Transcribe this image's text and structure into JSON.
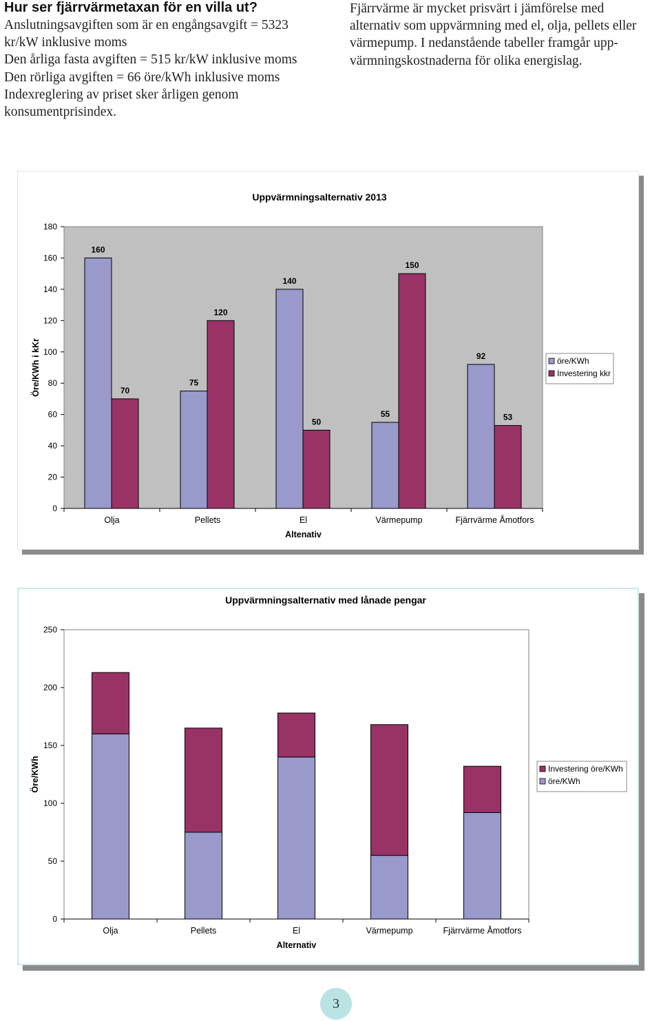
{
  "heading": "Hur ser fjärrvärmetaxan för en villa ut?",
  "left_lines": [
    "Anslutningsavgiften som är en engångsavgift = 5323",
    "kr/kW inklusive moms",
    "Den årliga fasta avgiften = 515 kr/kW inklusive moms",
    "Den rörliga avgiften = 66 öre/kWh inklusive moms",
    "Indexreglering av priset sker årligen genom",
    "konsumentprisindex."
  ],
  "right_lines": [
    "Fjärrvärme är mycket prisvärt i jämförelse med",
    "alternativ som uppvärmning med el, olja, pellets eller",
    "värmepump. I nedanstående tabeller framgår upp-",
    "värmningskostnaderna för olika energislag."
  ],
  "chart_data": [
    {
      "type": "bar",
      "title": "Uppvärmningsalternativ 2013",
      "xlabel": "Altenativ",
      "ylabel": "Öre/KWh i kKr",
      "categories": [
        "Olja",
        "Pellets",
        "El",
        "Värmepump",
        "Fjärrvärme Åmotfors"
      ],
      "series": [
        {
          "name": "öre/KWh",
          "values": [
            160,
            75,
            140,
            55,
            92
          ],
          "color": "#9999cc"
        },
        {
          "name": "Investering kkr",
          "values": [
            70,
            120,
            50,
            150,
            53
          ],
          "color": "#993366"
        }
      ],
      "ylim": [
        0,
        180
      ],
      "yticks": [
        0,
        20,
        40,
        60,
        80,
        100,
        120,
        140,
        160,
        180
      ],
      "data_labels": true,
      "grid": false,
      "legend": "right",
      "plot_background": "#c0c0c0"
    },
    {
      "type": "bar",
      "stacked": true,
      "title": "Uppvärmningsalternativ med lånade pengar",
      "xlabel": "Alternativ",
      "ylabel": "Öre/KWh",
      "categories": [
        "Olja",
        "Pellets",
        "El",
        "Värmepump",
        "Fjärrvärme Åmotfors"
      ],
      "series": [
        {
          "name": "öre/KWh",
          "values": [
            160,
            75,
            140,
            55,
            92
          ],
          "color": "#9999cc"
        },
        {
          "name": "Investering öre/KWh",
          "values": [
            53,
            90,
            38,
            113,
            40
          ],
          "color": "#993366"
        }
      ],
      "legend_order": [
        "Investering öre/KWh",
        "öre/KWh"
      ],
      "ylim": [
        0,
        250
      ],
      "yticks": [
        0,
        50,
        100,
        150,
        200,
        250
      ],
      "data_labels": false,
      "grid": false,
      "legend": "right",
      "plot_background": "#ffffff"
    }
  ],
  "page_number": "3"
}
